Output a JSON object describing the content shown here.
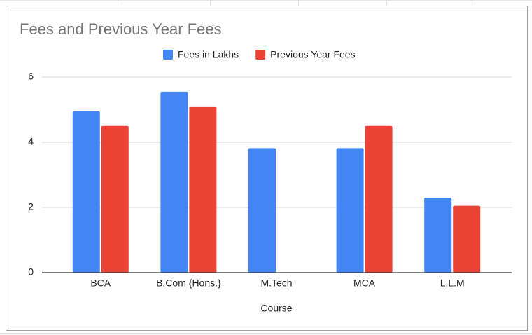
{
  "chart_data": {
    "type": "bar",
    "title": "Fees and Previous Year Fees",
    "categories": [
      "BCA",
      "B.Com {Hons.}",
      "M.Tech",
      "MCA",
      "L.L.M"
    ],
    "series": [
      {
        "name": "Fees in Lakhs",
        "color": "#4285f4",
        "values": [
          4.95,
          5.55,
          3.82,
          3.82,
          2.3
        ]
      },
      {
        "name": "Previous Year Fees",
        "color": "#ea4335",
        "values": [
          4.5,
          5.1,
          null,
          4.5,
          2.05
        ]
      }
    ],
    "x_label": "Course",
    "ylim": [
      0,
      6
    ],
    "yticks": [
      0,
      2,
      4,
      6
    ],
    "grid": true,
    "legend": "top"
  }
}
